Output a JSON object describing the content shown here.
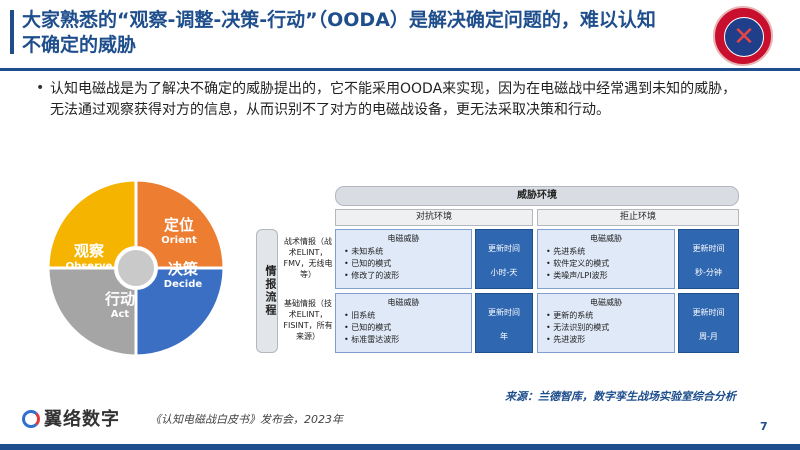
{
  "slide": {
    "title": "大家熟悉的“观察-调整-决策-行动”（OODA）是解决确定问题的，难以认知不确定的威胁",
    "bullet": "认知电磁战是为了解决不确定的威胁提出的，它不能采用OODA来实现，因为在电磁战中经常遇到未知的威胁，无法通过观察获得对方的信息，从而识别不了对方的电磁战设备，更无法采取决策和行动。",
    "page_number": "7"
  },
  "ooda": {
    "segments": [
      {
        "cn": "定位",
        "en": "Orient",
        "color": "#ed7d31"
      },
      {
        "cn": "决策",
        "en": "Decide",
        "color": "#3a6fc4"
      },
      {
        "cn": "行动",
        "en": "Act",
        "color": "#a5a5a5"
      },
      {
        "cn": "观察",
        "en": "Observe",
        "color": "#f5b400"
      }
    ]
  },
  "threat_table": {
    "header": "威胁环境",
    "columns": [
      "对抗环境",
      "拒止环境"
    ],
    "side_label": "情报流程",
    "rows": [
      {
        "intel": "战术情报（战术ELINT，FMV，无线电等）",
        "cells": [
          {
            "title": "电磁威胁",
            "items": [
              "未知系统",
              "已知的模式",
              "修改了的波形"
            ],
            "update_label": "更新时间",
            "update_value": "小时-天"
          },
          {
            "title": "电磁威胁",
            "items": [
              "先进系统",
              "软件定义的模式",
              "类噪声/LPI波形"
            ],
            "update_label": "更新时间",
            "update_value": "秒-分钟"
          }
        ]
      },
      {
        "intel": "基础情报（技术ELINT，FISINT，所有来源）",
        "cells": [
          {
            "title": "电磁威胁",
            "items": [
              "旧系统",
              "已知的模式",
              "标准雷达波形"
            ],
            "update_label": "更新时间",
            "update_value": "年"
          },
          {
            "title": "电磁威胁",
            "items": [
              "更新的系统",
              "无法识别的模式",
              "先进波形"
            ],
            "update_label": "更新时间",
            "update_value": "周-月"
          }
        ]
      }
    ]
  },
  "source": "来源：兰德智库，数字孪生战场实验室综合分析",
  "footer": {
    "logo_text": "翼络数字",
    "event_text": "《认知电磁战白皮书》发布会，2023年"
  },
  "colors": {
    "brand_blue": "#1f4e8c",
    "badge_red": "#c8102e"
  }
}
